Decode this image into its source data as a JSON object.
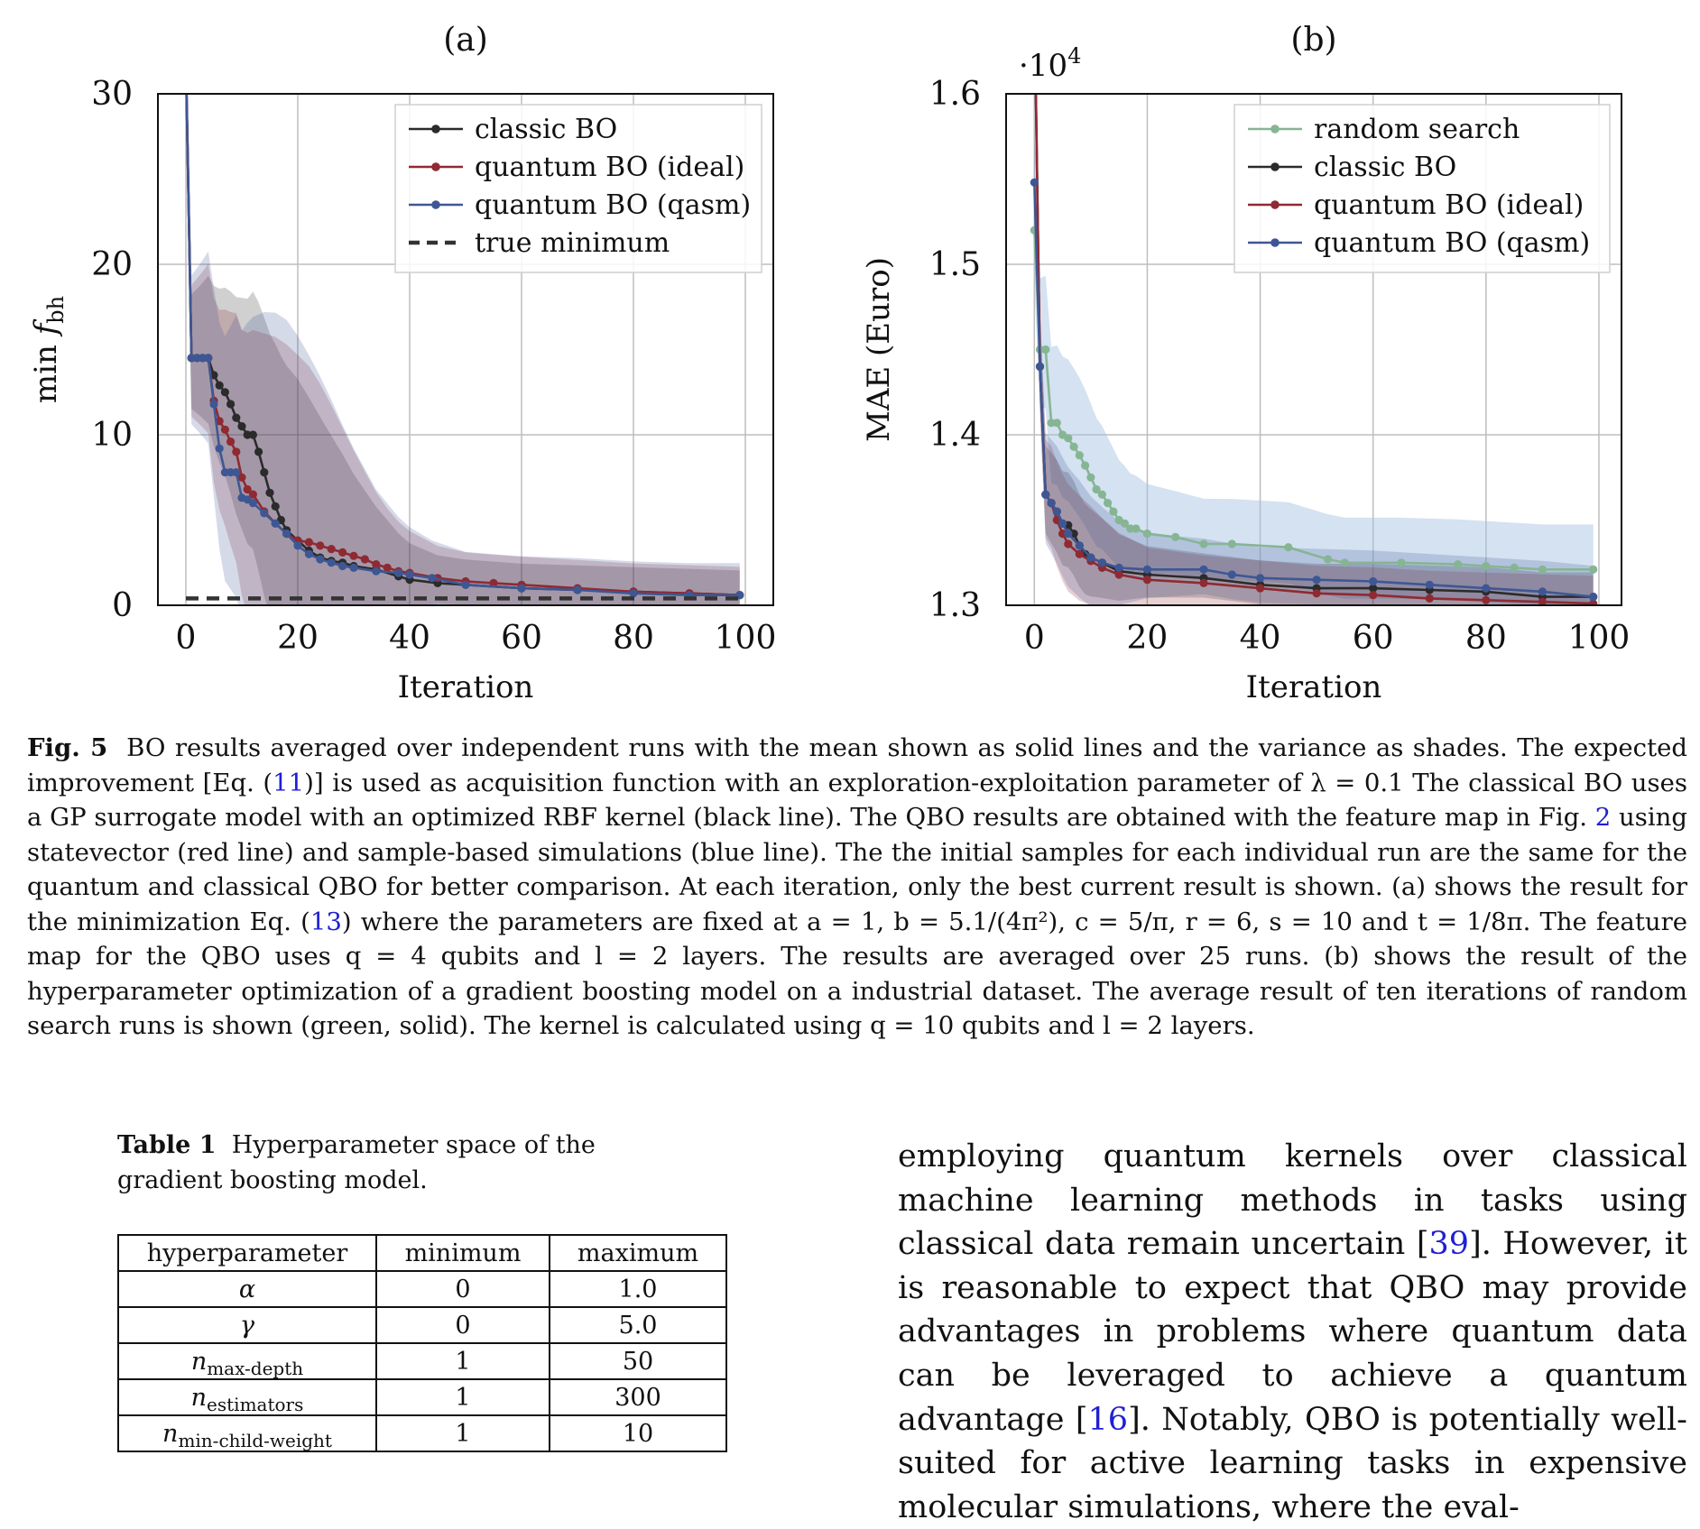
{
  "figure": {
    "panels": [
      {
        "label": "(a)",
        "exponent": "",
        "xlabel": "Iteration",
        "ylabel_main": "min ",
        "ylabel_var": "f",
        "ylabel_sub": "bh",
        "xticks": [
          0,
          20,
          40,
          60,
          80,
          100
        ],
        "yticks": [
          {
            "v": 0,
            "t": "0"
          },
          {
            "v": 10,
            "t": "10"
          },
          {
            "v": 20,
            "t": "20"
          },
          {
            "v": 30,
            "t": "30"
          }
        ],
        "legend": [
          "classic BO",
          "quantum BO (ideal)",
          "quantum BO (qasm)",
          "true minimum"
        ]
      },
      {
        "label": "(b)",
        "exponent": "·10",
        "exponent_power": "4",
        "xlabel": "Iteration",
        "ylabel_main": "MAE (Euro)",
        "xticks": [
          0,
          20,
          40,
          60,
          80,
          100
        ],
        "yticks": [
          {
            "v": 1.3,
            "t": "1.3"
          },
          {
            "v": 1.4,
            "t": "1.4"
          },
          {
            "v": 1.5,
            "t": "1.5"
          },
          {
            "v": 1.6,
            "t": "1.6"
          }
        ],
        "legend": [
          "random search",
          "classic BO",
          "quantum BO (ideal)",
          "quantum BO (qasm)"
        ]
      }
    ]
  },
  "chart_data": [
    {
      "type": "line",
      "title": "(a)",
      "xlabel": "Iteration",
      "ylabel": "min f_bh",
      "xlim": [
        -5,
        105
      ],
      "ylim": [
        0,
        30
      ],
      "grid": true,
      "legend_position": "top-right",
      "series": [
        {
          "name": "classic BO",
          "color": "#2b2b2b",
          "points": [
            [
              0,
              32
            ],
            [
              1,
              14.5
            ],
            [
              2,
              14.5
            ],
            [
              3,
              14.5
            ],
            [
              4,
              14.5
            ],
            [
              5,
              13.5
            ],
            [
              6,
              12.9
            ],
            [
              7,
              12.5
            ],
            [
              8,
              11.8
            ],
            [
              9,
              11
            ],
            [
              10,
              10.5
            ],
            [
              11,
              10
            ],
            [
              12,
              10
            ],
            [
              13,
              9
            ],
            [
              14,
              7.8
            ],
            [
              15,
              6.6
            ],
            [
              16,
              5.8
            ],
            [
              17,
              5
            ],
            [
              18,
              4.4
            ],
            [
              20,
              3.8
            ],
            [
              22,
              3.2
            ],
            [
              24,
              2.8
            ],
            [
              26,
              2.6
            ],
            [
              28,
              2.5
            ],
            [
              30,
              2.3
            ],
            [
              34,
              2.1
            ],
            [
              38,
              1.7
            ],
            [
              40,
              1.5
            ],
            [
              45,
              1.3
            ],
            [
              50,
              1.2
            ],
            [
              60,
              1.0
            ],
            [
              70,
              0.9
            ],
            [
              80,
              0.8
            ],
            [
              90,
              0.7
            ],
            [
              99,
              0.6
            ]
          ]
        },
        {
          "name": "quantum BO (ideal)",
          "color": "#8f2a32",
          "points": [
            [
              0,
              32
            ],
            [
              1,
              14.5
            ],
            [
              2,
              14.5
            ],
            [
              3,
              14.5
            ],
            [
              4,
              14.5
            ],
            [
              5,
              12
            ],
            [
              6,
              10.8
            ],
            [
              7,
              10.3
            ],
            [
              8,
              9.6
            ],
            [
              9,
              9
            ],
            [
              10,
              7.5
            ],
            [
              11,
              6.8
            ],
            [
              12,
              6.5
            ],
            [
              14,
              5.5
            ],
            [
              16,
              4.8
            ],
            [
              18,
              4.2
            ],
            [
              20,
              3.8
            ],
            [
              22,
              3.7
            ],
            [
              24,
              3.5
            ],
            [
              26,
              3.3
            ],
            [
              28,
              3.1
            ],
            [
              30,
              2.9
            ],
            [
              32,
              2.7
            ],
            [
              34,
              2.4
            ],
            [
              36,
              2.2
            ],
            [
              38,
              2.0
            ],
            [
              40,
              1.9
            ],
            [
              45,
              1.6
            ],
            [
              50,
              1.4
            ],
            [
              55,
              1.3
            ],
            [
              60,
              1.2
            ],
            [
              70,
              1.0
            ],
            [
              80,
              0.8
            ],
            [
              90,
              0.7
            ],
            [
              99,
              0.6
            ]
          ]
        },
        {
          "name": "quantum BO (qasm)",
          "color": "#3e5794",
          "points": [
            [
              0,
              32
            ],
            [
              1,
              14.5
            ],
            [
              2,
              14.5
            ],
            [
              3,
              14.5
            ],
            [
              4,
              14.5
            ],
            [
              5,
              11.8
            ],
            [
              6,
              9.2
            ],
            [
              7,
              7.8
            ],
            [
              8,
              7.8
            ],
            [
              9,
              7.8
            ],
            [
              10,
              6.3
            ],
            [
              11,
              6.2
            ],
            [
              12,
              6.0
            ],
            [
              14,
              5.4
            ],
            [
              16,
              4.8
            ],
            [
              18,
              4.2
            ],
            [
              20,
              3.5
            ],
            [
              22,
              3.0
            ],
            [
              24,
              2.7
            ],
            [
              26,
              2.5
            ],
            [
              28,
              2.3
            ],
            [
              30,
              2.2
            ],
            [
              34,
              2.0
            ],
            [
              38,
              1.9
            ],
            [
              40,
              1.8
            ],
            [
              44,
              1.6
            ],
            [
              50,
              1.2
            ],
            [
              60,
              1.0
            ],
            [
              70,
              0.9
            ],
            [
              80,
              0.7
            ],
            [
              90,
              0.6
            ],
            [
              99,
              0.6
            ]
          ]
        },
        {
          "name": "true minimum",
          "color": "#333333",
          "dashed": true,
          "points": [
            [
              0,
              0.4
            ],
            [
              99,
              0.4
            ]
          ]
        }
      ]
    },
    {
      "type": "line",
      "title": "(b)",
      "xlabel": "Iteration",
      "ylabel": "MAE (Euro)",
      "y_multiplier": "10^4",
      "xlim": [
        -5,
        104
      ],
      "ylim": [
        1.3,
        1.6
      ],
      "grid": true,
      "legend_position": "top-right",
      "series": [
        {
          "name": "random search",
          "color": "#86b594",
          "points": [
            [
              0,
              1.52
            ],
            [
              1,
              1.45
            ],
            [
              2,
              1.45
            ],
            [
              3,
              1.407
            ],
            [
              4,
              1.407
            ],
            [
              5,
              1.4
            ],
            [
              6,
              1.398
            ],
            [
              7,
              1.393
            ],
            [
              8,
              1.388
            ],
            [
              9,
              1.382
            ],
            [
              10,
              1.375
            ],
            [
              11,
              1.368
            ],
            [
              12,
              1.365
            ],
            [
              13,
              1.36
            ],
            [
              14,
              1.355
            ],
            [
              15,
              1.35
            ],
            [
              16,
              1.348
            ],
            [
              17,
              1.345
            ],
            [
              18,
              1.345
            ],
            [
              20,
              1.342
            ],
            [
              25,
              1.34
            ],
            [
              30,
              1.336
            ],
            [
              35,
              1.336
            ],
            [
              45,
              1.334
            ],
            [
              52,
              1.327
            ],
            [
              55,
              1.325
            ],
            [
              65,
              1.325
            ],
            [
              75,
              1.324
            ],
            [
              80,
              1.323
            ],
            [
              85,
              1.322
            ],
            [
              90,
              1.321
            ],
            [
              99,
              1.321
            ]
          ]
        },
        {
          "name": "classic BO",
          "color": "#2b2b2b",
          "points": [
            [
              0,
              1.66
            ],
            [
              1,
              1.44
            ],
            [
              2,
              1.365
            ],
            [
              3,
              1.36
            ],
            [
              4,
              1.355
            ],
            [
              5,
              1.348
            ],
            [
              6,
              1.347
            ],
            [
              7,
              1.342
            ],
            [
              8,
              1.335
            ],
            [
              9,
              1.33
            ],
            [
              10,
              1.328
            ],
            [
              12,
              1.325
            ],
            [
              15,
              1.32
            ],
            [
              20,
              1.318
            ],
            [
              30,
              1.316
            ],
            [
              40,
              1.312
            ],
            [
              50,
              1.31
            ],
            [
              60,
              1.31
            ],
            [
              70,
              1.309
            ],
            [
              80,
              1.308
            ],
            [
              90,
              1.305
            ],
            [
              99,
              1.305
            ]
          ]
        },
        {
          "name": "quantum BO (ideal)",
          "color": "#8f2a32",
          "points": [
            [
              0,
              1.66
            ],
            [
              1,
              1.44
            ],
            [
              2,
              1.365
            ],
            [
              3,
              1.36
            ],
            [
              4,
              1.35
            ],
            [
              5,
              1.342
            ],
            [
              6,
              1.336
            ],
            [
              8,
              1.33
            ],
            [
              10,
              1.326
            ],
            [
              12,
              1.322
            ],
            [
              15,
              1.318
            ],
            [
              20,
              1.315
            ],
            [
              30,
              1.313
            ],
            [
              40,
              1.31
            ],
            [
              50,
              1.307
            ],
            [
              60,
              1.306
            ],
            [
              70,
              1.304
            ],
            [
              80,
              1.303
            ],
            [
              90,
              1.302
            ],
            [
              99,
              1.301
            ]
          ]
        },
        {
          "name": "quantum BO (qasm)",
          "color": "#3e5794",
          "points": [
            [
              0,
              1.548
            ],
            [
              1,
              1.44
            ],
            [
              2,
              1.365
            ],
            [
              3,
              1.36
            ],
            [
              4,
              1.355
            ],
            [
              5,
              1.348
            ],
            [
              6,
              1.342
            ],
            [
              8,
              1.335
            ],
            [
              10,
              1.328
            ],
            [
              12,
              1.325
            ],
            [
              15,
              1.322
            ],
            [
              20,
              1.321
            ],
            [
              30,
              1.321
            ],
            [
              35,
              1.318
            ],
            [
              40,
              1.316
            ],
            [
              50,
              1.315
            ],
            [
              60,
              1.314
            ],
            [
              70,
              1.312
            ],
            [
              80,
              1.31
            ],
            [
              90,
              1.308
            ],
            [
              99,
              1.305
            ]
          ]
        }
      ]
    }
  ],
  "caption": {
    "label": "Fig. 5",
    "t1": "BO results averaged over independent runs with the mean shown as solid lines and the variance as shades. The expected improvement [Eq. (",
    "ref1": "11",
    "t2": ")] is used as acquisition function with an exploration-exploitation parameter of λ = 0.1 The classical BO uses a GP surrogate model with an optimized RBF kernel (black line). The QBO results are obtained with the feature map in Fig. ",
    "ref2": "2",
    "t3": " using statevector (red line) and sample-based simulations (blue line). The the initial samples for each individual run are the same for the quantum and classical QBO for better comparison. At each iteration, only the best current result is shown. (a) shows the result for the minimization Eq. (",
    "ref3": "13",
    "t4": ") where the parameters are fixed at a = 1, b = 5.1/(4π²), c = 5/π, r = 6, s = 10 and t = 1/8π. The feature map for the QBO uses q = 4 qubits and l = 2 layers. The results are averaged over 25 runs. (b) shows the result of the hyperparameter optimization of a gradient boosting model on a industrial dataset. The average result of ten iterations of random search runs is shown (green, solid). The kernel is calculated using q = 10 qubits and l = 2 layers."
  },
  "table": {
    "label": "Table 1",
    "caption": "Hyperparameter space of the gradient boosting model.",
    "headers": [
      "hyperparameter",
      "minimum",
      "maximum"
    ],
    "rows": [
      {
        "name": "α",
        "sub": "",
        "min": "0",
        "max": "1.0"
      },
      {
        "name": "γ",
        "sub": "",
        "min": "0",
        "max": "5.0"
      },
      {
        "name": "n",
        "sub": "max-depth",
        "min": "1",
        "max": "50"
      },
      {
        "name": "n",
        "sub": "estimators",
        "min": "1",
        "max": "300"
      },
      {
        "name": "n",
        "sub": "min-child-weight",
        "min": "1",
        "max": "10"
      }
    ]
  },
  "body": {
    "t1": "employing quantum kernels over classical machine learning methods in tasks using classical data remain uncertain [",
    "ref1": "39",
    "t2": "]. However, it is reasonable to expect that QBO may provide advantages in problems where quantum data can be leveraged to achieve a quantum advantage [",
    "ref2": "16",
    "t3": "]. Notably, QBO is potentially well-suited for active learning tasks in expensive molecular simulations, where the eval-"
  }
}
